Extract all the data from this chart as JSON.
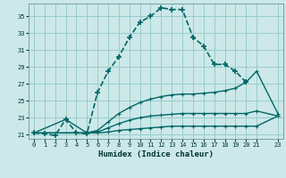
{
  "xlabel": "Humidex (Indice chaleur)",
  "bg_color": "#cce8e8",
  "grid_color": "#99cccc",
  "line_color": "#006666",
  "xlim": [
    -0.5,
    23.5
  ],
  "ylim": [
    20.5,
    36.5
  ],
  "xticks": [
    0,
    1,
    2,
    3,
    4,
    5,
    6,
    7,
    8,
    9,
    10,
    11,
    12,
    13,
    14,
    15,
    16,
    17,
    18,
    19,
    20,
    21,
    23
  ],
  "yticks": [
    21,
    23,
    25,
    27,
    29,
    31,
    33,
    35
  ],
  "series": [
    {
      "x": [
        0,
        1,
        2,
        3,
        4,
        5,
        6,
        7,
        8,
        9,
        10,
        11,
        12,
        13,
        14,
        15,
        16,
        17,
        18,
        19,
        20,
        23
      ],
      "y": [
        21.2,
        21.1,
        20.9,
        22.8,
        21.2,
        21.1,
        26.0,
        28.5,
        30.2,
        32.5,
        34.3,
        35.0,
        36.0,
        35.8,
        35.8,
        32.5,
        31.5,
        29.3,
        29.3,
        28.5,
        27.2,
        null
      ]
    },
    {
      "x": [
        0,
        3,
        5,
        6,
        7,
        8,
        9,
        10,
        11,
        12,
        13,
        14,
        15,
        16,
        17,
        18,
        19,
        20,
        21,
        23
      ],
      "y": [
        21.2,
        22.8,
        21.2,
        21.5,
        22.5,
        23.5,
        24.2,
        24.8,
        25.2,
        25.5,
        25.7,
        25.8,
        25.8,
        25.9,
        26.0,
        26.2,
        26.5,
        27.2,
        28.5,
        23.5
      ]
    },
    {
      "x": [
        0,
        5,
        6,
        7,
        8,
        9,
        10,
        11,
        12,
        13,
        14,
        15,
        16,
        17,
        18,
        19,
        20,
        21,
        23
      ],
      "y": [
        21.2,
        21.2,
        21.3,
        21.8,
        22.3,
        22.7,
        23.0,
        23.2,
        23.3,
        23.4,
        23.5,
        23.5,
        23.5,
        23.5,
        23.5,
        23.5,
        23.5,
        23.8,
        23.2
      ]
    },
    {
      "x": [
        0,
        5,
        6,
        7,
        8,
        9,
        10,
        11,
        12,
        13,
        14,
        15,
        16,
        17,
        18,
        19,
        20,
        21,
        23
      ],
      "y": [
        21.2,
        21.2,
        21.2,
        21.3,
        21.5,
        21.6,
        21.7,
        21.8,
        21.9,
        22.0,
        22.0,
        22.0,
        22.0,
        22.0,
        22.0,
        22.0,
        22.0,
        22.0,
        23.2
      ]
    }
  ]
}
